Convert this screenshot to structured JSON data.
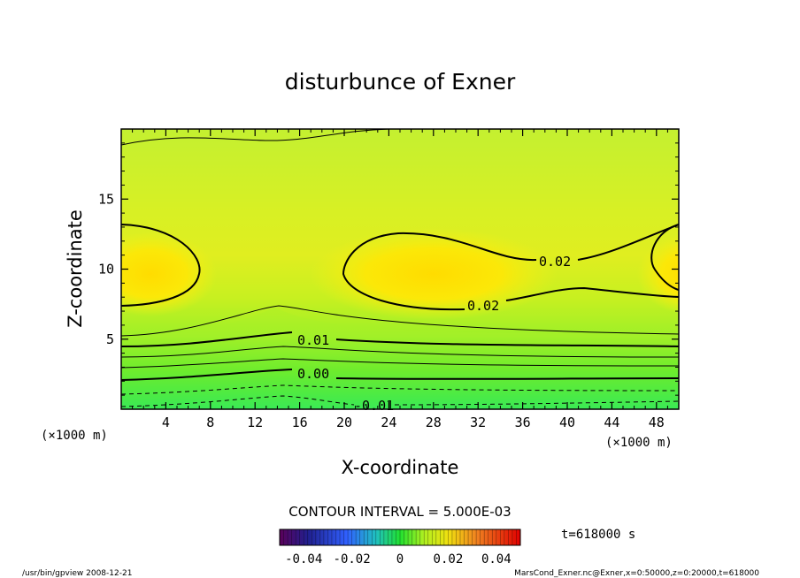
{
  "chart_data": {
    "type": "contour",
    "title": "disturbunce of Exner",
    "xlabel": "X-coordinate",
    "ylabel": "Z-coordinate",
    "x_unit": "(×1000 m)",
    "y_unit": "(×1000 m)",
    "xlim": [
      0,
      50
    ],
    "ylim": [
      0,
      20
    ],
    "x_ticks": [
      4,
      8,
      12,
      16,
      20,
      24,
      28,
      32,
      36,
      40,
      44,
      48
    ],
    "x_tick_labels": [
      "4",
      "8",
      "12",
      "16",
      "20",
      "24",
      "28",
      "32",
      "36",
      "40",
      "44",
      "48"
    ],
    "y_ticks": [
      5,
      10,
      15
    ],
    "y_tick_labels": [
      "5",
      "10",
      "15"
    ],
    "contour_labels": [
      "0.02",
      "0.02",
      "0.01",
      "0.00",
      "-0.01"
    ],
    "contour_interval_text": "CONTOUR INTERVAL = 5.000E-03",
    "colorbar": {
      "min": -0.05,
      "max": 0.05,
      "tick_values": [
        -0.04,
        -0.02,
        0,
        0.02,
        0.04
      ],
      "tick_labels": [
        "-0.04",
        "-0.02",
        "0",
        "0.02",
        "0.04"
      ]
    },
    "time_label": "t=618000  s",
    "footer_left": "/usr/bin/gpview   2008-12-21",
    "footer_right": "MarsCond_Exner.nc@Exner,x=0:50000,z=0:20000,t=618000"
  }
}
